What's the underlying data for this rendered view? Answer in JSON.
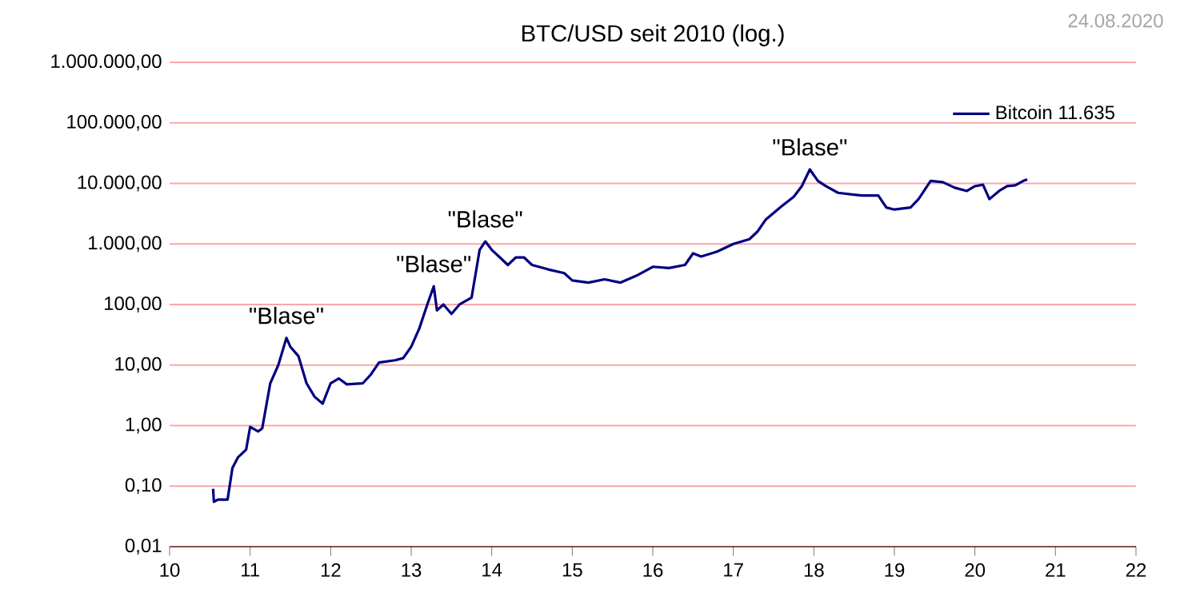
{
  "chart_data": {
    "type": "line",
    "title": "BTC/USD seit 2010 (log.)",
    "x": [
      10.54,
      10.55,
      10.6,
      10.72,
      10.78,
      10.85,
      10.95,
      11.0,
      11.1,
      11.15,
      11.25,
      11.35,
      11.45,
      11.5,
      11.6,
      11.7,
      11.8,
      11.9,
      12.0,
      12.1,
      12.2,
      12.4,
      12.5,
      12.6,
      12.8,
      12.9,
      13.0,
      13.1,
      13.2,
      13.28,
      13.32,
      13.4,
      13.5,
      13.6,
      13.75,
      13.85,
      13.92,
      14.0,
      14.1,
      14.2,
      14.3,
      14.4,
      14.5,
      14.7,
      14.9,
      15.0,
      15.2,
      15.4,
      15.6,
      15.8,
      16.0,
      16.2,
      16.4,
      16.5,
      16.6,
      16.8,
      17.0,
      17.2,
      17.3,
      17.4,
      17.6,
      17.75,
      17.85,
      17.95,
      18.05,
      18.15,
      18.3,
      18.5,
      18.6,
      18.8,
      18.9,
      19.0,
      19.2,
      19.3,
      19.45,
      19.6,
      19.75,
      19.9,
      20.0,
      20.1,
      20.18,
      20.3,
      20.4,
      20.5,
      20.6,
      20.65
    ],
    "series": [
      {
        "name": "Bitcoin 11.635",
        "color": "#000080",
        "values": [
          0.09,
          0.055,
          0.06,
          0.06,
          0.2,
          0.3,
          0.4,
          0.95,
          0.8,
          0.9,
          5,
          10,
          28,
          20,
          14,
          5,
          3,
          2.3,
          5,
          6,
          4.8,
          5,
          7,
          11,
          12,
          13,
          20,
          40,
          100,
          200,
          80,
          100,
          70,
          100,
          130,
          800,
          1100,
          800,
          600,
          450,
          600,
          600,
          450,
          380,
          330,
          250,
          230,
          260,
          230,
          300,
          420,
          400,
          450,
          700,
          620,
          750,
          1000,
          1200,
          1600,
          2500,
          4200,
          6000,
          9000,
          17000,
          11000,
          9000,
          7000,
          6500,
          6300,
          6300,
          4000,
          3700,
          4000,
          5500,
          11000,
          10500,
          8500,
          7500,
          9000,
          9500,
          5500,
          7500,
          9000,
          9300,
          11000,
          11600
        ]
      }
    ],
    "xlim": [
      10,
      22
    ],
    "xticks": [
      10,
      11,
      12,
      13,
      14,
      15,
      16,
      17,
      18,
      19,
      20,
      21,
      22
    ],
    "ylim": [
      0.01,
      1000000
    ],
    "yticks": [
      {
        "value": 0.01,
        "label": "0,01"
      },
      {
        "value": 0.1,
        "label": "0,10"
      },
      {
        "value": 1,
        "label": "1,00"
      },
      {
        "value": 10,
        "label": "10,00"
      },
      {
        "value": 100,
        "label": "100,00"
      },
      {
        "value": 1000,
        "label": "1.000,00"
      },
      {
        "value": 10000,
        "label": "10.000,00"
      },
      {
        "value": 100000,
        "label": "100.000,00"
      },
      {
        "value": 1000000,
        "label": "1.000.000,00"
      }
    ],
    "log": "y",
    "grid": "y",
    "legend": "top right",
    "annotations": [
      {
        "text": "\"Blase\"",
        "x": 11.45,
        "y": 28
      },
      {
        "text": "\"Blase\"",
        "x": 13.28,
        "y": 200
      },
      {
        "text": "\"Blase\"",
        "x": 13.92,
        "y": 1100
      },
      {
        "text": "\"Blase\"",
        "x": 17.95,
        "y": 17000
      },
      "24.08.2020"
    ]
  }
}
